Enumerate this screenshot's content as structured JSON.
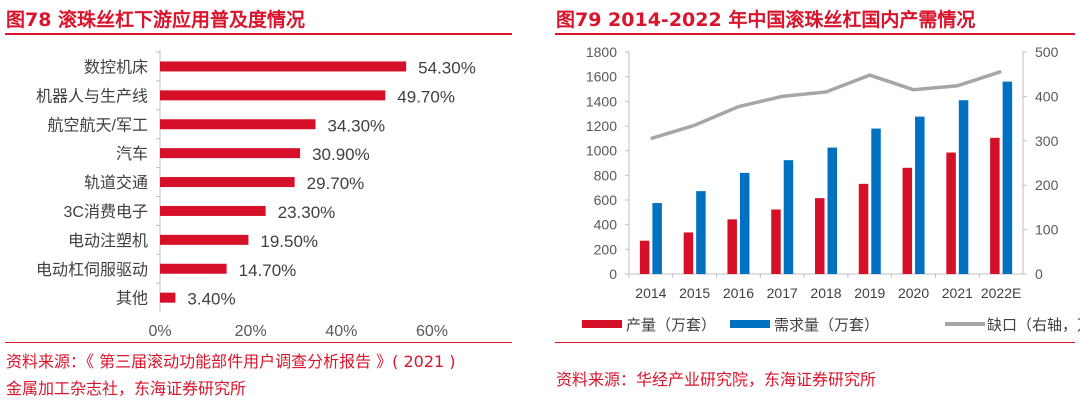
{
  "left": {
    "title": "图78  滚珠丝杠下游应用普及度情况",
    "source_line1": "资料来源：《 第三届滚动功能部件用户调查分析报告 》( 2021 )",
    "source_line2": "金属加工杂志社，东海证券研究所"
  },
  "right": {
    "title": "图79  2014-2022 年中国滚珠丝杠国内产需情况",
    "source": "资料来源：华经产业研究院，东海证券研究所"
  },
  "chart_data": [
    {
      "type": "bar",
      "orientation": "horizontal",
      "categories": [
        "数控机床",
        "机器人与生产线",
        "航空航天/军工",
        "汽车",
        "轨道交通",
        "3C消费电子",
        "电动注塑机",
        "电动杠伺服驱动",
        "其他"
      ],
      "values": [
        54.3,
        49.7,
        34.3,
        30.9,
        29.7,
        23.3,
        19.5,
        14.7,
        3.4
      ],
      "data_labels": [
        "54.30%",
        "49.70%",
        "34.30%",
        "30.90%",
        "29.70%",
        "23.30%",
        "19.50%",
        "14.70%",
        "3.40%"
      ],
      "xlim": [
        0,
        60
      ],
      "xticks": [
        "0%",
        "20%",
        "40%",
        "60%"
      ],
      "grid": false,
      "color": "#d7102a"
    },
    {
      "type": "bar+line",
      "categories": [
        "2014",
        "2015",
        "2016",
        "2017",
        "2018",
        "2019",
        "2020",
        "2021",
        "2022E"
      ],
      "series": [
        {
          "name": "产量（万套）",
          "type": "bar",
          "axis": "left",
          "color": "#d7102a",
          "values": [
            270,
            337,
            443,
            523,
            615,
            731,
            861,
            985,
            1104
          ]
        },
        {
          "name": "需求量（万套）",
          "type": "bar",
          "axis": "left",
          "color": "#0070c0",
          "values": [
            575,
            672,
            820,
            923,
            1025,
            1179,
            1276,
            1409,
            1560
          ]
        },
        {
          "name": "缺口（右轴，万套）",
          "type": "line",
          "axis": "right",
          "color": "#a6a6a6",
          "values": [
            305,
            335,
            377,
            400,
            410,
            448,
            415,
            424,
            456
          ]
        }
      ],
      "ylim": [
        0,
        1800
      ],
      "yticks": [
        "0",
        "200",
        "400",
        "600",
        "800",
        "1000",
        "1200",
        "1400",
        "1600",
        "1800"
      ],
      "y2lim": [
        0,
        500
      ],
      "y2ticks": [
        "0",
        "100",
        "200",
        "300",
        "400",
        "500"
      ],
      "legend": "bottom",
      "grid": false
    }
  ]
}
